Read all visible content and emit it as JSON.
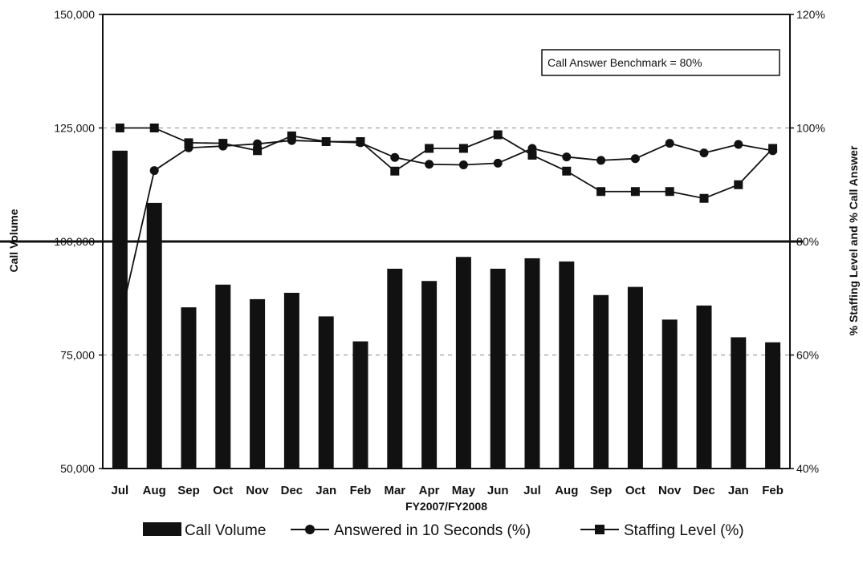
{
  "chart_data": {
    "type": "bar+line",
    "xlabel": "FY2007/FY2008",
    "ylabel_left": "Call Volume",
    "ylabel_right": "% Staffing Level and % Call Answer",
    "ylim_left": [
      50000,
      150000
    ],
    "ylim_right": [
      40,
      120
    ],
    "left_ticks": [
      "50,000",
      "75,000",
      "100,000",
      "125,000",
      "150,000"
    ],
    "left_tick_values": [
      50000,
      75000,
      100000,
      125000,
      150000
    ],
    "right_ticks": [
      "40%",
      "60%",
      "80%",
      "100%",
      "120%"
    ],
    "right_tick_values": [
      40,
      60,
      80,
      100,
      120
    ],
    "categories": [
      "Jul",
      "Aug",
      "Sep",
      "Oct",
      "Nov",
      "Dec",
      "Jan",
      "Feb",
      "Mar",
      "Apr",
      "May",
      "Jun",
      "Jul",
      "Aug",
      "Sep",
      "Oct",
      "Nov",
      "Dec",
      "Jan",
      "Feb"
    ],
    "series": [
      {
        "name": "Call Volume",
        "kind": "bar",
        "axis": "left",
        "values": [
          120000,
          108500,
          85500,
          90500,
          87300,
          88700,
          83500,
          78000,
          94000,
          91300,
          96600,
          94000,
          96300,
          95600,
          88200,
          90000,
          82800,
          85900,
          78900,
          77800
        ]
      },
      {
        "name": "Answered in 10 Seconds (%)",
        "kind": "line",
        "marker": "circle",
        "axis": "right",
        "values": [
          66,
          92.5,
          96.5,
          96.8,
          97.2,
          97.8,
          97.6,
          97.4,
          94.8,
          93.6,
          93.5,
          93.8,
          96.4,
          94.9,
          94.3,
          94.6,
          97.3,
          95.6,
          97.1,
          96.0
        ]
      },
      {
        "name": "Staffing Level (%)",
        "kind": "line",
        "marker": "square",
        "axis": "right",
        "values": [
          100,
          100,
          97.4,
          97.3,
          96.0,
          98.6,
          97.6,
          97.6,
          92.4,
          96.4,
          96.4,
          98.8,
          95.2,
          92.4,
          88.8,
          88.8,
          88.8,
          87.6,
          90.0,
          96.4
        ]
      }
    ],
    "benchmark": {
      "value": 80,
      "label": "Call Answer Benchmark = 80%"
    },
    "grid": "dashed-horizontal",
    "legend_position": "bottom"
  }
}
